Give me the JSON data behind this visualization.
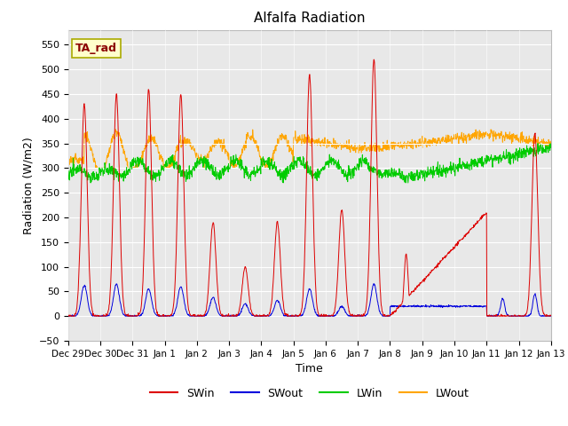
{
  "title": "Alfalfa Radiation",
  "xlabel": "Time",
  "ylabel": "Radiation (W/m2)",
  "ylim": [
    -50,
    580
  ],
  "background_color": "#e8e8e8",
  "fig_color": "#ffffff",
  "line_colors": {
    "SWin": "#dd0000",
    "SWout": "#0000dd",
    "LWin": "#00cc00",
    "LWout": "#ffa500"
  },
  "legend_label": "TA_rad",
  "legend_label_color": "#8b0000",
  "legend_box_facecolor": "#ffffcc",
  "legend_box_edgecolor": "#aaaa00",
  "n_days": 15,
  "swout_flat_level": 20,
  "lwout_flat_level": 340,
  "lwin_flat_level": 310
}
